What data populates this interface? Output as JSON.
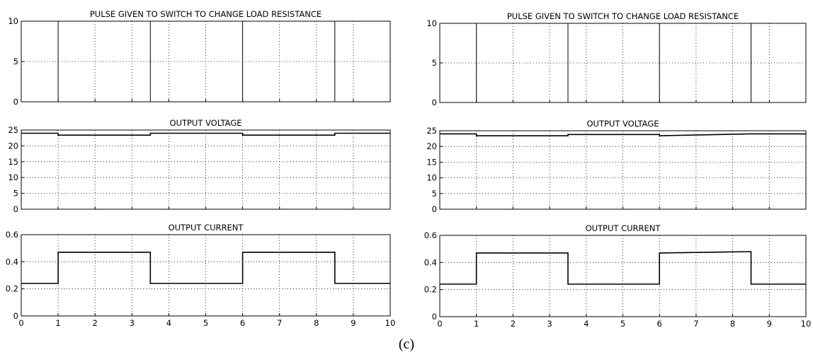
{
  "caption": "(c)",
  "chart_data": [
    {
      "type": "line",
      "title": "PULSE GIVEN TO SWITCH TO CHANGE LOAD RESISTANCE",
      "xlim": [
        0,
        10
      ],
      "ylim": [
        0,
        10
      ],
      "yticks": [
        0,
        5,
        10
      ],
      "xticks": [],
      "grid": true,
      "x": [
        0,
        1,
        1,
        3.5,
        3.5,
        6,
        6,
        8.5,
        8.5,
        10
      ],
      "y": [
        0,
        0,
        10,
        10,
        0,
        0,
        10,
        10,
        0,
        0
      ]
    },
    {
      "type": "line",
      "title": "OUTPUT VOLTAGE",
      "xlim": [
        0,
        10
      ],
      "ylim": [
        0,
        25
      ],
      "yticks": [
        0,
        5,
        10,
        15,
        20,
        25
      ],
      "xticks": [],
      "grid": true,
      "x": [
        0,
        1,
        1,
        3.5,
        3.5,
        6,
        6,
        8.5,
        8.5,
        10
      ],
      "y": [
        24,
        24,
        23.4,
        23.4,
        24,
        24,
        23.4,
        23.4,
        24,
        24
      ]
    },
    {
      "type": "line",
      "title": "OUTPUT CURRENT",
      "xlim": [
        0,
        10
      ],
      "ylim": [
        0,
        0.6
      ],
      "yticks": [
        0,
        0.2,
        0.4,
        0.6
      ],
      "xticks": [
        0,
        1,
        2,
        3,
        4,
        5,
        6,
        7,
        8,
        9,
        10
      ],
      "grid": true,
      "x": [
        0,
        1,
        1,
        3.5,
        3.5,
        6,
        6,
        8.5,
        8.5,
        10
      ],
      "y": [
        0.24,
        0.24,
        0.47,
        0.47,
        0.24,
        0.24,
        0.47,
        0.47,
        0.24,
        0.24
      ]
    },
    {
      "type": "line",
      "title": "PULSE GIVEN TO SWITCH TO CHANGE LOAD RESISTANCE",
      "xlim": [
        0,
        10
      ],
      "ylim": [
        0,
        10
      ],
      "yticks": [
        0,
        5,
        10
      ],
      "xticks": [],
      "grid": true,
      "x": [
        0,
        1,
        1,
        3.5,
        3.5,
        6,
        6,
        8.5,
        8.5,
        10
      ],
      "y": [
        0,
        0,
        10,
        10,
        0,
        0,
        10,
        10,
        0,
        0
      ]
    },
    {
      "type": "line",
      "title": "OUTPUT VOLTAGE",
      "xlim": [
        0,
        10
      ],
      "ylim": [
        0,
        25
      ],
      "yticks": [
        0,
        5,
        10,
        15,
        20,
        25
      ],
      "xticks": [],
      "grid": true,
      "x": [
        0,
        1,
        1,
        3.5,
        3.5,
        6,
        6,
        8.5,
        8.5,
        10
      ],
      "y": [
        24,
        24,
        23.4,
        23.4,
        23.8,
        23.8,
        23.4,
        24,
        24,
        24
      ]
    },
    {
      "type": "line",
      "title": "OUTPUT CURRENT",
      "xlim": [
        0,
        10
      ],
      "ylim": [
        0,
        0.6
      ],
      "yticks": [
        0,
        0.2,
        0.4,
        0.6
      ],
      "xticks": [
        0,
        1,
        2,
        3,
        4,
        5,
        6,
        7,
        8,
        9,
        10
      ],
      "grid": true,
      "x": [
        0,
        1,
        1,
        3.5,
        3.5,
        6,
        6,
        8.5,
        8.5,
        10
      ],
      "y": [
        0.24,
        0.24,
        0.47,
        0.47,
        0.24,
        0.24,
        0.47,
        0.48,
        0.24,
        0.24
      ]
    }
  ]
}
